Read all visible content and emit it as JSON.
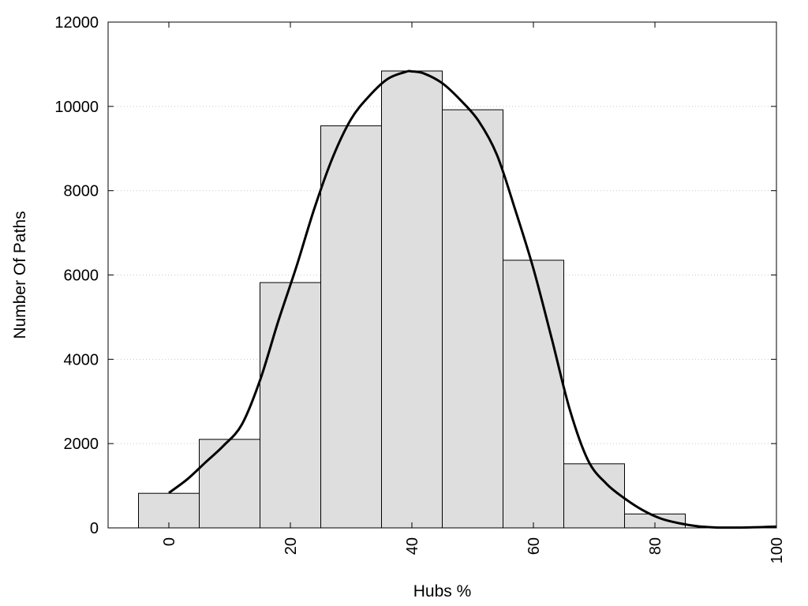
{
  "chart_data": {
    "type": "bar",
    "title": "",
    "xlabel": "Hubs %",
    "ylabel": "Number Of Paths",
    "xlim": [
      -10,
      100
    ],
    "ylim": [
      0,
      12000
    ],
    "x_ticks": [
      0,
      20,
      40,
      60,
      80,
      100
    ],
    "x_tick_labels": [
      "0",
      "20",
      "40",
      "60",
      "80",
      "100"
    ],
    "y_ticks": [
      0,
      2000,
      4000,
      6000,
      8000,
      10000,
      12000
    ],
    "y_tick_labels": [
      "0",
      "2000",
      "4000",
      "6000",
      "8000",
      "10000",
      "12000"
    ],
    "bin_width": 10,
    "bins": [
      {
        "center": 0,
        "value": 820
      },
      {
        "center": 10,
        "value": 2100
      },
      {
        "center": 20,
        "value": 5820
      },
      {
        "center": 30,
        "value": 9540
      },
      {
        "center": 40,
        "value": 10840
      },
      {
        "center": 50,
        "value": 9920
      },
      {
        "center": 60,
        "value": 6350
      },
      {
        "center": 70,
        "value": 1520
      },
      {
        "center": 80,
        "value": 330
      }
    ],
    "curve": {
      "x": [
        0,
        3,
        6,
        9,
        12,
        15,
        18,
        21,
        24,
        27,
        30,
        33,
        36,
        39,
        40,
        42,
        45,
        48,
        51,
        54,
        57,
        60,
        63,
        66,
        69,
        72,
        75,
        78,
        81,
        84,
        87,
        90,
        95,
        100
      ],
      "y": [
        830,
        1150,
        1550,
        1950,
        2450,
        3500,
        4900,
        6200,
        7600,
        8800,
        9700,
        10250,
        10650,
        10820,
        10830,
        10780,
        10550,
        10150,
        9650,
        8850,
        7550,
        6150,
        4500,
        2800,
        1600,
        1050,
        700,
        420,
        220,
        110,
        40,
        10,
        10,
        30
      ]
    },
    "colors": {
      "bar_fill": "#dedede",
      "bar_stroke": "#000000",
      "curve": "#000000",
      "grid": "#c8c8c8"
    },
    "grid": "horizontal dotted",
    "legend": "none"
  }
}
